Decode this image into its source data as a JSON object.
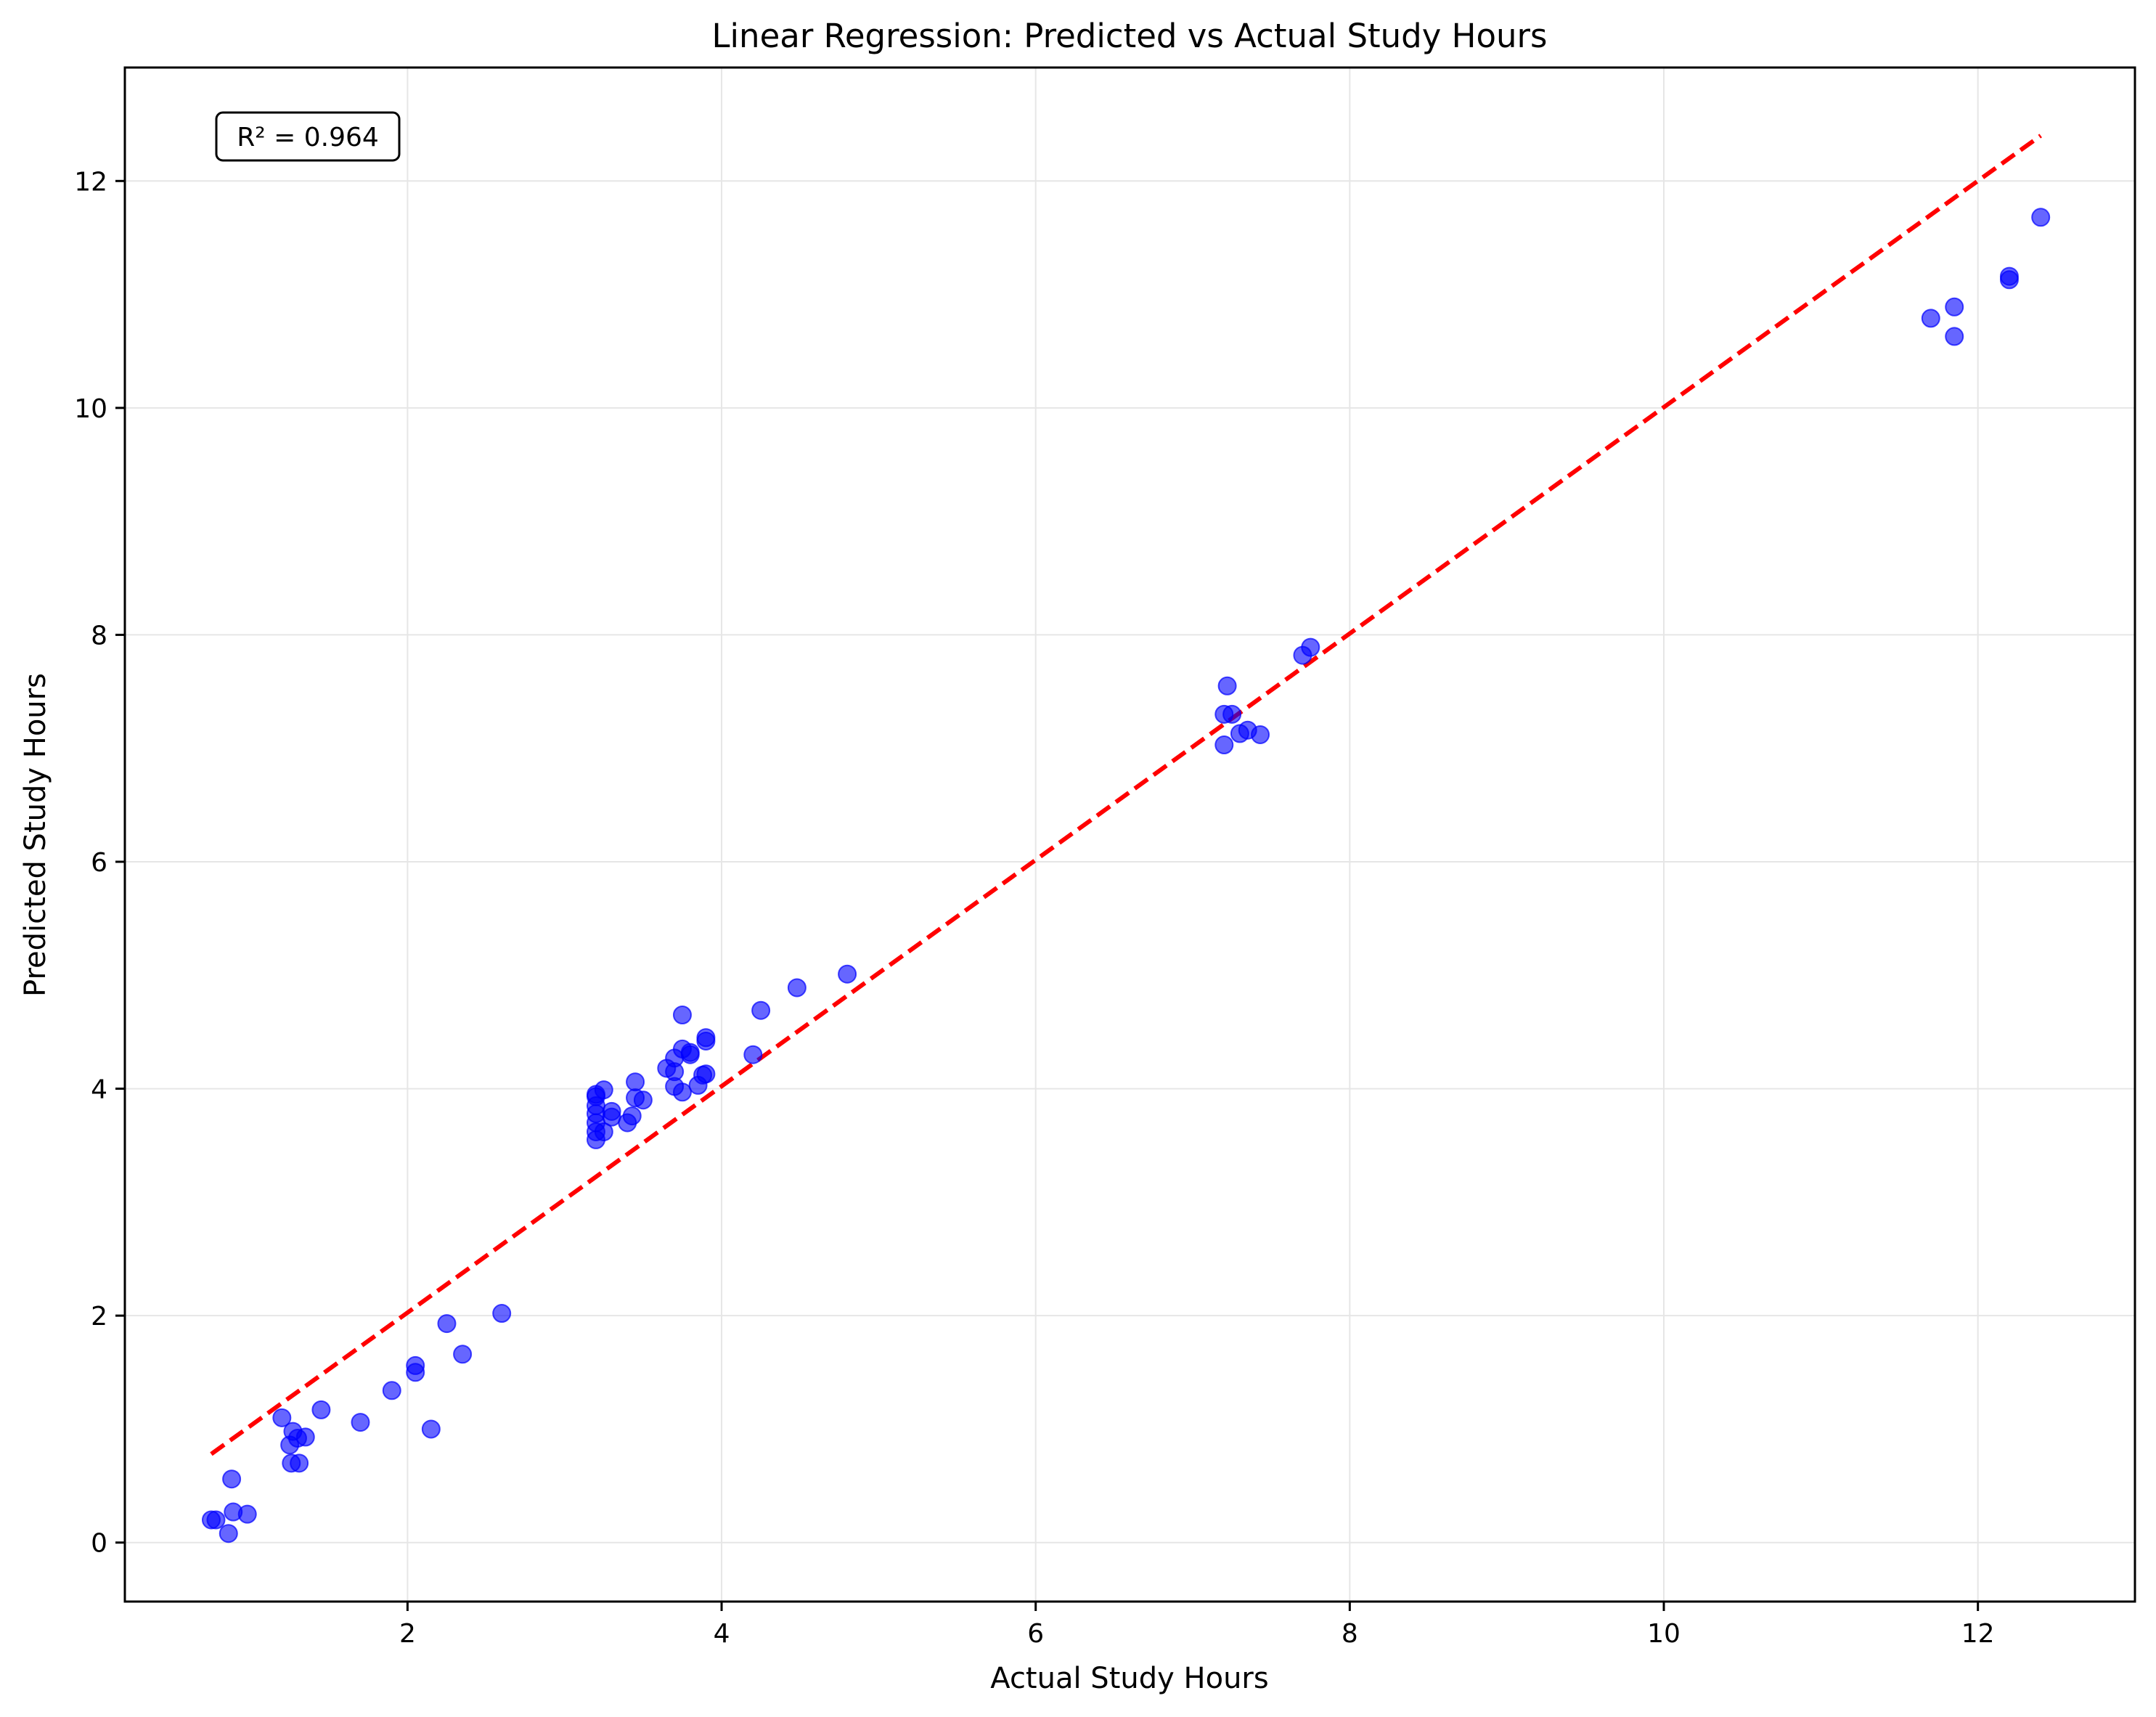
{
  "chart_data": {
    "type": "scatter",
    "title": "Linear Regression: Predicted vs Actual Study Hours",
    "xlabel": "Actual Study Hours",
    "ylabel": "Predicted Study Hours",
    "xlim": [
      0.2,
      13.0
    ],
    "ylim": [
      -0.52,
      13.0
    ],
    "xticks": [
      2,
      4,
      6,
      8,
      10,
      12
    ],
    "yticks": [
      0,
      2,
      4,
      6,
      8,
      10,
      12
    ],
    "grid": true,
    "annotation": "R² = 0.964",
    "colors": {
      "points": "#0000ff",
      "line": "#ff0000",
      "grid": "#e6e6e6"
    },
    "reference_line": {
      "style": "dashed",
      "x": [
        0.75,
        12.4
      ],
      "y": [
        0.78,
        12.4
      ]
    },
    "points": [
      [
        0.75,
        0.2
      ],
      [
        0.78,
        0.2
      ],
      [
        0.86,
        0.08
      ],
      [
        0.88,
        0.56
      ],
      [
        0.89,
        0.27
      ],
      [
        0.98,
        0.25
      ],
      [
        1.2,
        1.1
      ],
      [
        1.25,
        0.86
      ],
      [
        1.26,
        0.7
      ],
      [
        1.27,
        0.98
      ],
      [
        1.3,
        0.92
      ],
      [
        1.31,
        0.7
      ],
      [
        1.35,
        0.93
      ],
      [
        1.45,
        1.17
      ],
      [
        1.7,
        1.06
      ],
      [
        1.9,
        1.34
      ],
      [
        2.05,
        1.56
      ],
      [
        2.05,
        1.5
      ],
      [
        2.15,
        1.0
      ],
      [
        2.25,
        1.93
      ],
      [
        2.35,
        1.66
      ],
      [
        2.6,
        2.02
      ],
      [
        3.2,
        3.55
      ],
      [
        3.2,
        3.62
      ],
      [
        3.2,
        3.7
      ],
      [
        3.2,
        3.78
      ],
      [
        3.2,
        3.85
      ],
      [
        3.2,
        3.93
      ],
      [
        3.2,
        3.95
      ],
      [
        3.25,
        3.99
      ],
      [
        3.25,
        3.62
      ],
      [
        3.3,
        3.8
      ],
      [
        3.3,
        3.75
      ],
      [
        3.4,
        3.7
      ],
      [
        3.43,
        3.76
      ],
      [
        3.45,
        3.92
      ],
      [
        3.45,
        4.06
      ],
      [
        3.5,
        3.9
      ],
      [
        3.65,
        4.18
      ],
      [
        3.7,
        4.02
      ],
      [
        3.7,
        4.27
      ],
      [
        3.7,
        4.15
      ],
      [
        3.75,
        3.97
      ],
      [
        3.75,
        4.35
      ],
      [
        3.75,
        4.65
      ],
      [
        3.8,
        4.3
      ],
      [
        3.8,
        4.32
      ],
      [
        3.85,
        4.03
      ],
      [
        3.88,
        4.12
      ],
      [
        3.9,
        4.13
      ],
      [
        3.9,
        4.42
      ],
      [
        3.9,
        4.45
      ],
      [
        4.2,
        4.3
      ],
      [
        4.25,
        4.69
      ],
      [
        4.48,
        4.89
      ],
      [
        4.8,
        5.01
      ],
      [
        7.2,
        7.03
      ],
      [
        7.2,
        7.3
      ],
      [
        7.22,
        7.55
      ],
      [
        7.25,
        7.3
      ],
      [
        7.3,
        7.13
      ],
      [
        7.35,
        7.16
      ],
      [
        7.43,
        7.12
      ],
      [
        7.7,
        7.82
      ],
      [
        7.75,
        7.89
      ],
      [
        11.7,
        10.79
      ],
      [
        11.85,
        10.89
      ],
      [
        11.85,
        10.63
      ],
      [
        12.2,
        11.16
      ],
      [
        12.2,
        11.13
      ],
      [
        12.4,
        11.68
      ]
    ]
  }
}
